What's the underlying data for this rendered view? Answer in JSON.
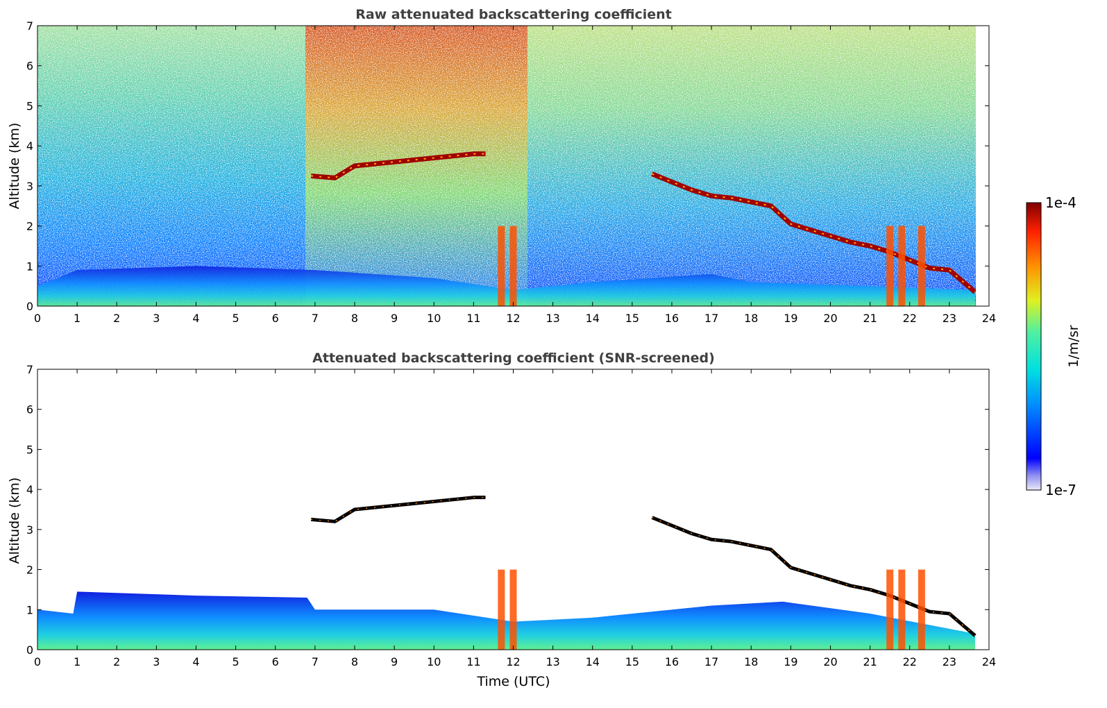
{
  "chart_data": [
    {
      "type": "heatmap",
      "title": "Raw attenuated backscattering coefficient",
      "xlabel": "",
      "ylabel": "Altitude (km)",
      "xlim": [
        0,
        24
      ],
      "ylim": [
        0,
        7
      ],
      "xticks": [
        "0",
        "1",
        "2",
        "3",
        "4",
        "5",
        "6",
        "7",
        "8",
        "9",
        "10",
        "11",
        "12",
        "13",
        "14",
        "15",
        "16",
        "17",
        "18",
        "19",
        "20",
        "21",
        "22",
        "23",
        "24"
      ],
      "yticks": [
        "0",
        "1",
        "2",
        "3",
        "4",
        "5",
        "6",
        "7"
      ],
      "data_end_time": 23.65,
      "cloud_layer": {
        "time": [
          6.9,
          7.5,
          8.0,
          9.0,
          10.0,
          11.0,
          11.3
        ],
        "altitude": [
          3.25,
          3.2,
          3.5,
          3.6,
          3.7,
          3.8,
          3.8
        ]
      },
      "descending_layer": {
        "time": [
          15.5,
          16.0,
          16.5,
          17.0,
          17.5,
          18.0,
          18.5,
          19.0,
          19.5,
          20.0,
          20.5,
          21.0,
          21.5,
          22.0,
          22.5,
          23.0,
          23.65
        ],
        "altitude": [
          3.3,
          3.1,
          2.9,
          2.75,
          2.7,
          2.6,
          2.5,
          2.05,
          1.9,
          1.75,
          1.6,
          1.5,
          1.35,
          1.15,
          0.95,
          0.9,
          0.35
        ]
      },
      "aerosol_layer": {
        "time": [
          0,
          1,
          4,
          7,
          10,
          12,
          14,
          17,
          18,
          21,
          23.65
        ],
        "altitude": [
          0.5,
          0.9,
          1.0,
          0.9,
          0.7,
          0.4,
          0.6,
          0.8,
          0.6,
          0.5,
          0.4
        ]
      },
      "precip_shafts": [
        11.7,
        12.0,
        21.5,
        21.8,
        22.3
      ]
    },
    {
      "type": "heatmap",
      "title": "Attenuated backscattering coefficient (SNR-screened)",
      "xlabel": "Time (UTC)",
      "ylabel": "Altitude (km)",
      "xlim": [
        0,
        24
      ],
      "ylim": [
        0,
        7
      ],
      "xticks": [
        "0",
        "1",
        "2",
        "3",
        "4",
        "5",
        "6",
        "7",
        "8",
        "9",
        "10",
        "11",
        "12",
        "13",
        "14",
        "15",
        "16",
        "17",
        "18",
        "19",
        "20",
        "21",
        "22",
        "23",
        "24"
      ],
      "yticks": [
        "0",
        "1",
        "2",
        "3",
        "4",
        "5",
        "6",
        "7"
      ],
      "data_end_time": 23.65,
      "boundary_layer_top": {
        "time": [
          0,
          0.9,
          1.0,
          4.0,
          6.8,
          7.0,
          10.0,
          12.0,
          14.0,
          17.0,
          18.8,
          21.0,
          23.65
        ],
        "altitude": [
          1.0,
          0.9,
          1.45,
          1.35,
          1.3,
          1.0,
          1.0,
          0.7,
          0.8,
          1.1,
          1.2,
          0.9,
          0.4
        ]
      }
    }
  ],
  "colorbar": {
    "label": "1/m/sr",
    "max_label": "1e-4",
    "min_label": "1e-7",
    "scale": "log",
    "range": [
      1e-07,
      0.0001
    ]
  }
}
